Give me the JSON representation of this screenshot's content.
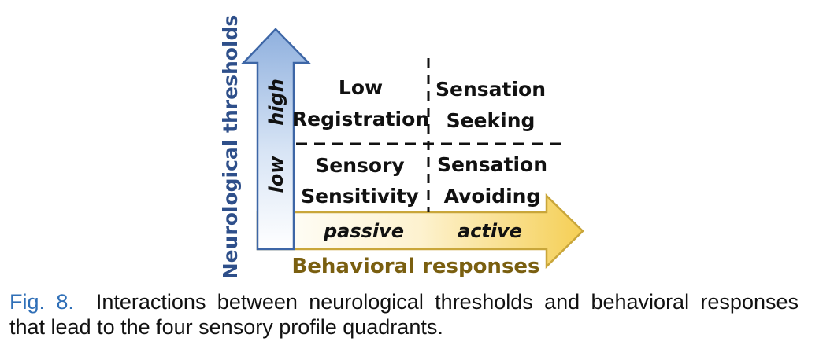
{
  "diagram": {
    "y_axis_title": "Neurological thresholds",
    "y_high": "high",
    "y_low": "low",
    "x_axis_title": "Behavioral responses",
    "x_passive": "passive",
    "x_active": "active",
    "quadrants": {
      "top_left": [
        "Low",
        "Registration"
      ],
      "top_right": [
        "Sensation",
        "Seeking"
      ],
      "bottom_left": [
        "Sensory",
        "Sensitivity"
      ],
      "bottom_right": [
        "Sensation",
        "Avoiding"
      ]
    }
  },
  "caption": {
    "label": "Fig. 8.",
    "text": "Interactions between neurological thresholds and behavioral responses that lead to the four sensory profile quadrants."
  }
}
